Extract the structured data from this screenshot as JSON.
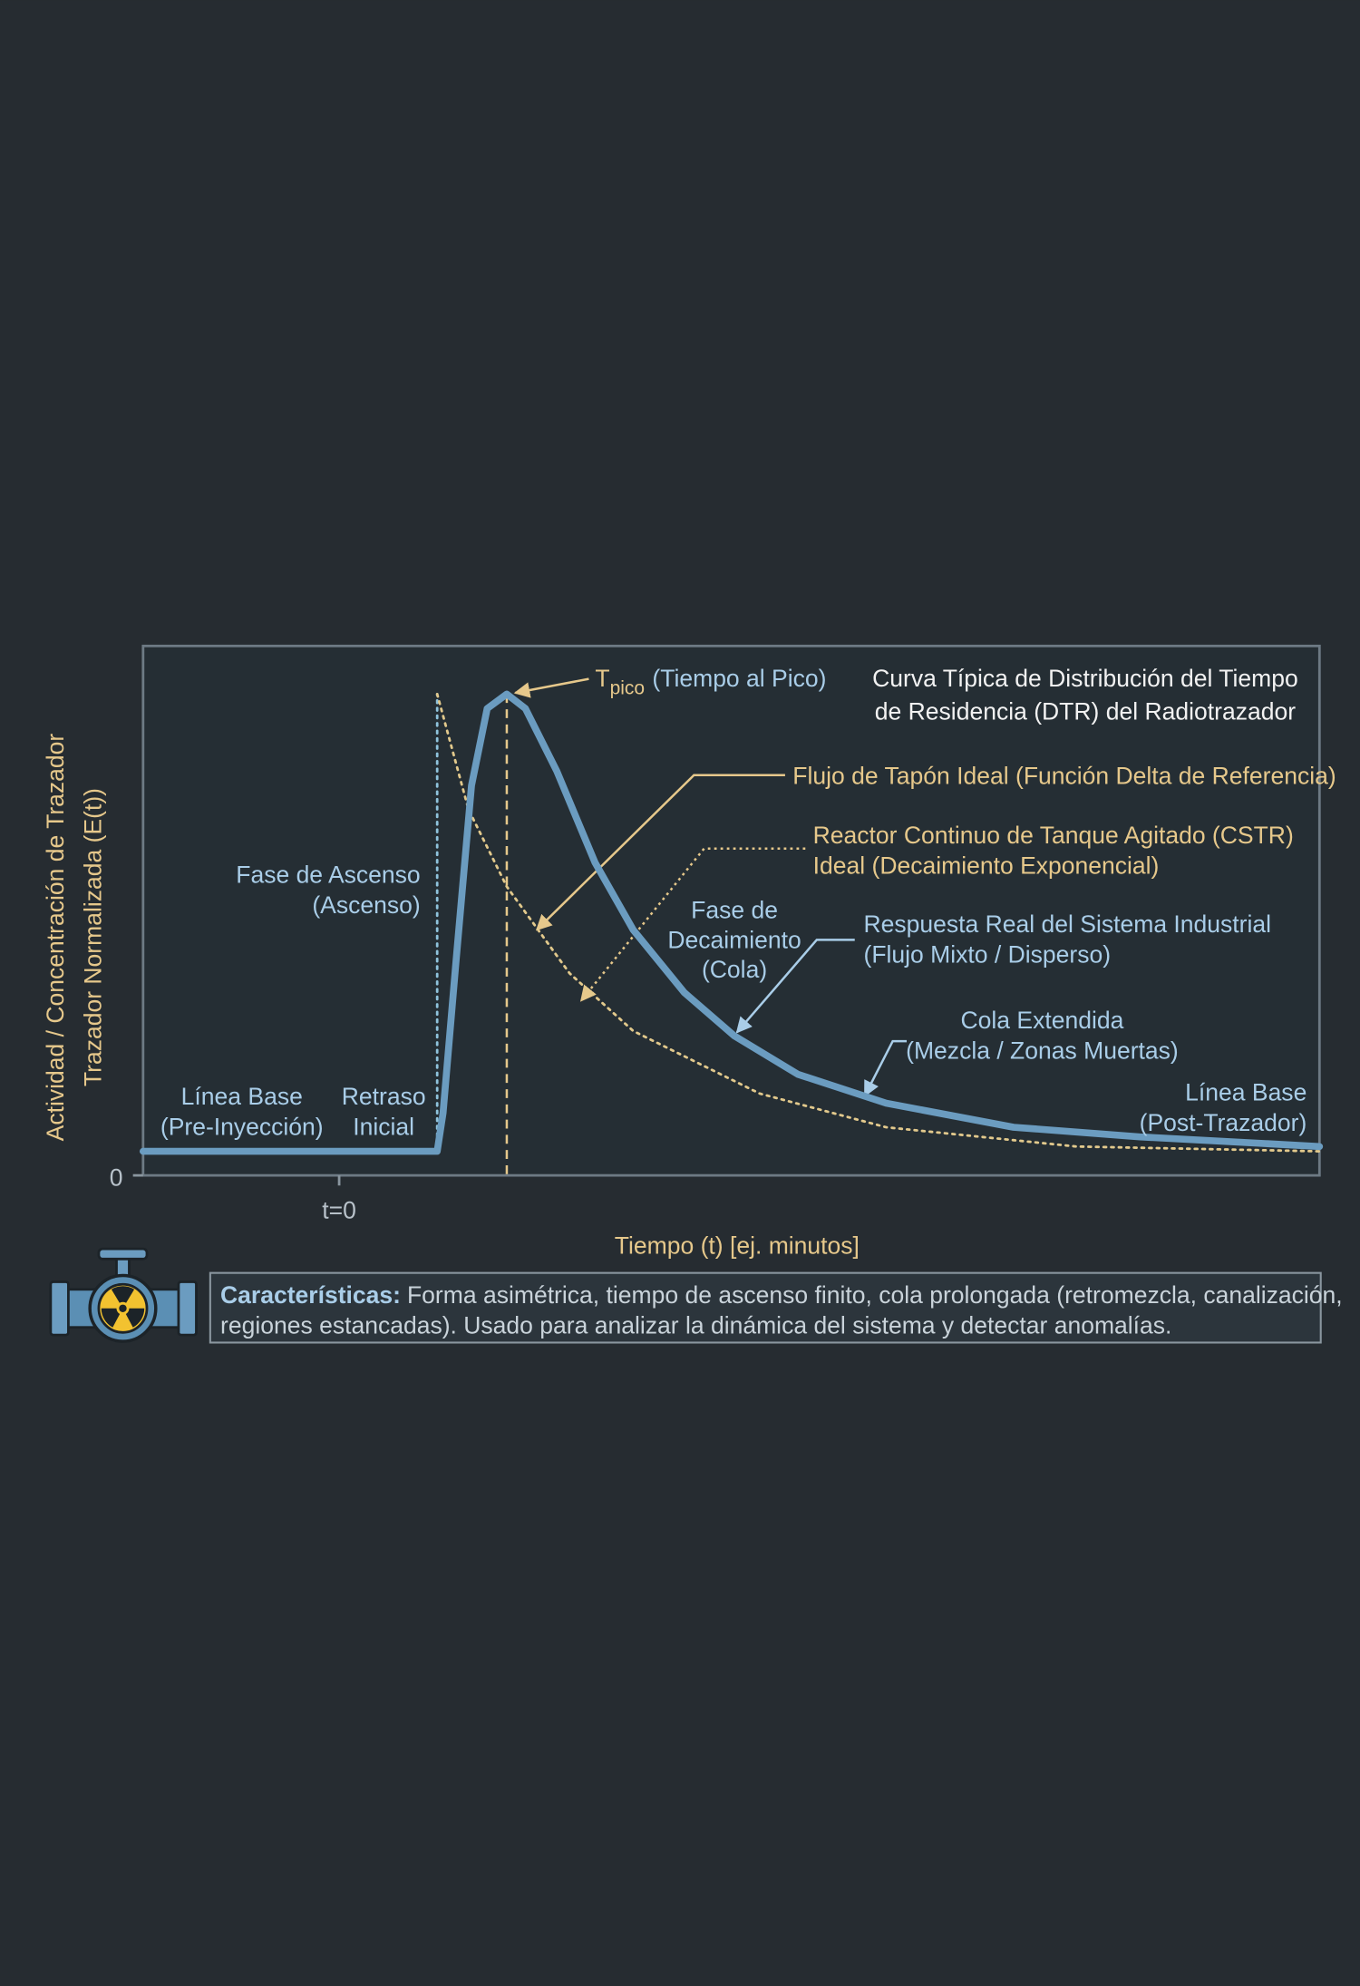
{
  "chart_data": {
    "type": "line",
    "title": [
      "Curva Típica de Distribución del Tiempo",
      "de Residencia (DTR) del Radiotrazador"
    ],
    "x_label": "Tiempo (t) [ej. minutos]",
    "y_label": [
      "Actividad / Concentración de Trazador",
      "Trazador Normalizada (E(t))"
    ],
    "xlim": [
      -2,
      10
    ],
    "ylim": [
      0,
      1.1
    ],
    "xticks": [
      {
        "value": 0,
        "label": "t=0"
      }
    ],
    "yticks": [
      0
    ],
    "series": [
      {
        "color": "#6b9cc0",
        "style": "solid",
        "x": [
          -2,
          1.0,
          1.06,
          1.19,
          1.35,
          1.51,
          1.71,
          1.9,
          2.22,
          2.61,
          3.0,
          3.52,
          4.03,
          4.68,
          5.58,
          6.88,
          8.17,
          10
        ],
        "values": [
          0.05,
          0.05,
          0.13,
          0.44,
          0.81,
          0.97,
          1.0,
          0.97,
          0.84,
          0.65,
          0.51,
          0.38,
          0.29,
          0.21,
          0.15,
          0.1,
          0.08,
          0.06
        ]
      },
      {
        "color": "#e2c98c",
        "style": "dotted",
        "x": [
          1.0,
          1.32,
          1.71,
          2.35,
          3.0,
          4.29,
          5.58,
          7.52,
          10
        ],
        "values": [
          1.0,
          0.76,
          0.6,
          0.42,
          0.3,
          0.17,
          0.1,
          0.06,
          0.05
        ]
      },
      {
        "color": "#8fc3dc",
        "style": "dotted",
        "x": [
          1.0,
          1.0
        ],
        "values": [
          0.05,
          1.0
        ]
      }
    ],
    "annotations": {
      "peak": {
        "symbol": "T",
        "subscript": "pico",
        "text": "(Tiempo al Pico)"
      },
      "plug_flow": [
        "Flujo de Tapón Ideal (Función Delta de Referencia)"
      ],
      "cstr": [
        "Reactor Continuo de Tanque Agitado (CSTR)",
        "Ideal (Decaimiento Exponencial)"
      ],
      "real": [
        "Respuesta Real del Sistema Industrial",
        "(Flujo Mixto / Disperso)"
      ],
      "tail": [
        "Cola Extendida",
        "(Mezcla / Zonas Muertas)"
      ],
      "decay": [
        "Fase de",
        "Decaimiento",
        "(Cola)"
      ],
      "rise": [
        "Fase de Ascenso",
        "(Ascenso)"
      ],
      "baseline_pre": [
        "Línea Base",
        "(Pre-Inyección)"
      ],
      "delay": [
        "Retraso",
        "Inicial"
      ],
      "baseline_post": [
        "Línea Base",
        "(Post-Trazador)"
      ]
    },
    "footer": {
      "label": "Características:",
      "lines": [
        "Forma asimétrica, tiempo de ascenso finito, cola prolongada (retromezcla, canalización,",
        "regiones estancadas). Usado para analizar la dinámica del sistema y detectar anomalías."
      ]
    }
  }
}
